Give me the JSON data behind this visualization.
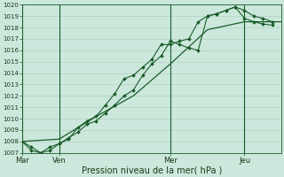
{
  "bg_color": "#cce8dc",
  "grid_color": "#aaccbb",
  "line_color": "#1a5c2a",
  "marker_color": "#1a5c2a",
  "title": "Pression niveau de la mer( hPa )",
  "ylim": [
    1007,
    1020
  ],
  "yticks": [
    1007,
    1008,
    1009,
    1010,
    1011,
    1012,
    1013,
    1014,
    1015,
    1016,
    1017,
    1018,
    1019,
    1020
  ],
  "xlim": [
    0,
    168
  ],
  "xtick_labels": [
    "Mar",
    "Ven",
    "Mer",
    "Jeu"
  ],
  "xtick_positions": [
    0,
    24,
    96,
    144
  ],
  "vline_positions": [
    0,
    24,
    96,
    144
  ],
  "series": [
    {
      "x": [
        0,
        6,
        12,
        18,
        24,
        30,
        36,
        42,
        48,
        54,
        60,
        66,
        72,
        78,
        84,
        90,
        96,
        102,
        108,
        114,
        120,
        126,
        132,
        138,
        144,
        150,
        156,
        162
      ],
      "y": [
        1008.0,
        1007.2,
        1007.0,
        1007.2,
        1007.8,
        1008.2,
        1009.2,
        1009.8,
        1010.2,
        1011.2,
        1012.2,
        1013.5,
        1013.8,
        1014.5,
        1015.2,
        1016.5,
        1016.5,
        1016.8,
        1017.0,
        1018.5,
        1019.0,
        1019.2,
        1019.5,
        1019.8,
        1018.8,
        1018.5,
        1018.3,
        1018.2
      ]
    },
    {
      "x": [
        0,
        6,
        12,
        18,
        24,
        30,
        36,
        42,
        48,
        54,
        60,
        66,
        72,
        78,
        84,
        90,
        96,
        102,
        108,
        114,
        120,
        126,
        132,
        138,
        144,
        150,
        156,
        162
      ],
      "y": [
        1008.0,
        1007.5,
        1007.0,
        1007.5,
        1007.8,
        1008.3,
        1008.8,
        1009.5,
        1009.8,
        1010.5,
        1011.2,
        1012.0,
        1012.5,
        1013.8,
        1014.8,
        1015.5,
        1016.8,
        1016.5,
        1016.2,
        1016.0,
        1019.0,
        1019.2,
        1019.5,
        1019.8,
        1019.5,
        1019.0,
        1018.8,
        1018.5
      ]
    },
    {
      "x": [
        0,
        24,
        48,
        72,
        96,
        120,
        144,
        168
      ],
      "y": [
        1008.0,
        1008.2,
        1010.2,
        1012.0,
        1014.8,
        1017.8,
        1018.5,
        1018.5
      ]
    }
  ]
}
